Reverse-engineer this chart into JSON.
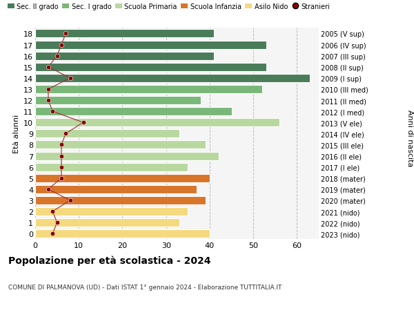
{
  "ages": [
    18,
    17,
    16,
    15,
    14,
    13,
    12,
    11,
    10,
    9,
    8,
    7,
    6,
    5,
    4,
    3,
    2,
    1,
    0
  ],
  "years_labels": [
    "2005 (V sup)",
    "2006 (IV sup)",
    "2007 (III sup)",
    "2008 (II sup)",
    "2009 (I sup)",
    "2010 (III med)",
    "2011 (II med)",
    "2012 (I med)",
    "2013 (V ele)",
    "2014 (IV ele)",
    "2015 (III ele)",
    "2016 (II ele)",
    "2017 (I ele)",
    "2018 (mater)",
    "2019 (mater)",
    "2020 (mater)",
    "2021 (nido)",
    "2022 (nido)",
    "2023 (nido)"
  ],
  "bar_values": [
    41,
    53,
    41,
    53,
    63,
    52,
    38,
    45,
    56,
    33,
    39,
    42,
    35,
    40,
    37,
    39,
    35,
    33,
    40
  ],
  "stranieri_values": [
    7,
    6,
    5,
    3,
    8,
    3,
    3,
    4,
    11,
    7,
    6,
    6,
    6,
    6,
    3,
    8,
    4,
    5,
    4
  ],
  "bar_colors": [
    "#4a7c59",
    "#4a7c59",
    "#4a7c59",
    "#4a7c59",
    "#4a7c59",
    "#7ab87a",
    "#7ab87a",
    "#7ab87a",
    "#b8d8a0",
    "#b8d8a0",
    "#b8d8a0",
    "#b8d8a0",
    "#b8d8a0",
    "#d9752a",
    "#d9752a",
    "#d9752a",
    "#f5d97e",
    "#f5d97e",
    "#f5d97e"
  ],
  "legend_colors": [
    "#4a7c59",
    "#7ab87a",
    "#b8d8a0",
    "#d9752a",
    "#f5d97e"
  ],
  "legend_labels": [
    "Sec. II grado",
    "Sec. I grado",
    "Scuola Primaria",
    "Scuola Infanzia",
    "Asilo Nido",
    "Stranieri"
  ],
  "stranieri_dot_color": "#8b0000",
  "stranieri_line_color": "#a03030",
  "title": "Popolazione per età scolastica - 2024",
  "subtitle": "COMUNE DI PALMANOVA (UD) - Dati ISTAT 1° gennaio 2024 - Elaborazione TUTTITALIA.IT",
  "ylabel_left": "Età alunni",
  "ylabel_right": "Anni di nascita",
  "xlim": [
    0,
    65
  ],
  "ylim": [
    -0.5,
    18.5
  ],
  "xticks": [
    0,
    10,
    20,
    30,
    40,
    50,
    60
  ],
  "bg_color": "#ffffff",
  "plot_bg_color": "#f5f5f5",
  "grid_color": "#bbbbbb",
  "bar_height": 0.75
}
